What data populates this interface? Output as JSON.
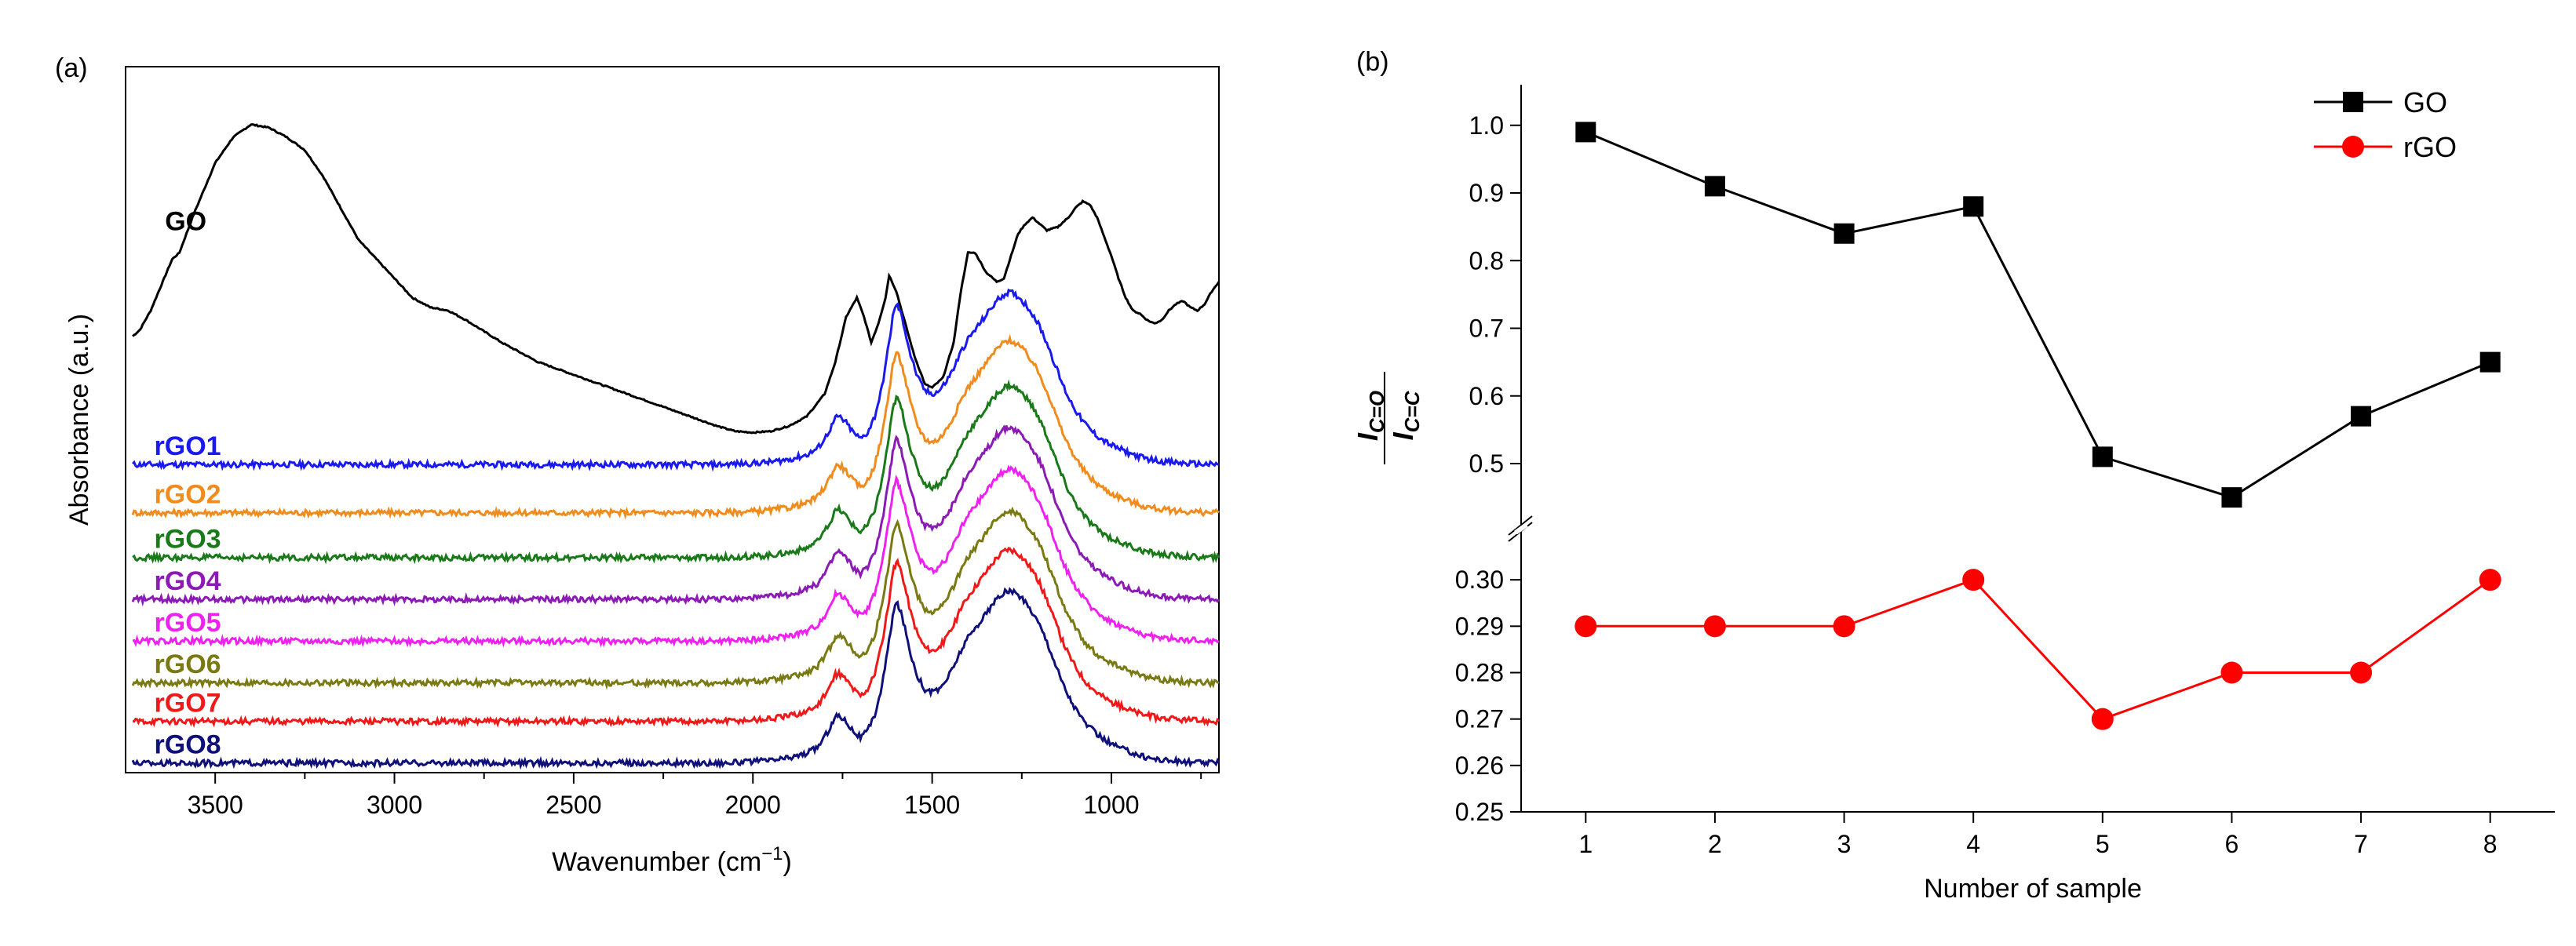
{
  "chart_data": [
    {
      "panel_label": "(a)",
      "type": "line",
      "xlabel": "Wavenumber (cm",
      "xlabel_sup": "−1",
      "xlabel_close": ")",
      "ylabel": "Absorbance (a.u.)",
      "xlim": [
        3750,
        700
      ],
      "x_ticks": [
        3500,
        3000,
        2500,
        2000,
        1500,
        1000
      ],
      "x_tick_labels": [
        "3500",
        "3000",
        "2500",
        "2000",
        "1500",
        "1000"
      ],
      "ylim": [
        -0.2,
        10.8
      ],
      "go_curve": {
        "name": "GO",
        "color": "#000000",
        "label_x": 3640,
        "label_y": 8.25,
        "x": [
          3730,
          3710,
          3680,
          3650,
          3620,
          3600,
          3560,
          3500,
          3450,
          3400,
          3350,
          3300,
          3250,
          3200,
          3150,
          3100,
          3050,
          3000,
          2950,
          2900,
          2850,
          2800,
          2700,
          2600,
          2500,
          2400,
          2300,
          2200,
          2100,
          2050,
          2000,
          1950,
          1900,
          1850,
          1800,
          1770,
          1740,
          1710,
          1690,
          1670,
          1650,
          1630,
          1620,
          1600,
          1580,
          1550,
          1520,
          1500,
          1470,
          1440,
          1420,
          1400,
          1380,
          1350,
          1320,
          1300,
          1280,
          1260,
          1240,
          1220,
          1200,
          1180,
          1150,
          1120,
          1100,
          1080,
          1060,
          1050,
          1040,
          1020,
          1000,
          980,
          960,
          940,
          920,
          900,
          880,
          860,
          840,
          820,
          800,
          780,
          760,
          740,
          720,
          700
        ],
        "y": [
          6.6,
          6.7,
          7.0,
          7.4,
          7.8,
          7.9,
          8.5,
          9.3,
          9.7,
          9.9,
          9.85,
          9.7,
          9.5,
          9.1,
          8.6,
          8.1,
          7.8,
          7.5,
          7.2,
          7.05,
          7.0,
          6.85,
          6.5,
          6.2,
          6.0,
          5.8,
          5.6,
          5.4,
          5.2,
          5.12,
          5.1,
          5.12,
          5.2,
          5.35,
          5.7,
          6.2,
          6.9,
          7.2,
          6.9,
          6.5,
          6.8,
          7.2,
          7.55,
          7.3,
          6.9,
          6.3,
          5.85,
          5.8,
          5.95,
          6.5,
          7.3,
          7.9,
          7.9,
          7.6,
          7.45,
          7.5,
          7.85,
          8.2,
          8.35,
          8.45,
          8.35,
          8.25,
          8.3,
          8.45,
          8.6,
          8.7,
          8.65,
          8.55,
          8.45,
          8.15,
          7.85,
          7.5,
          7.2,
          7.0,
          6.95,
          6.85,
          6.8,
          6.85,
          7.0,
          7.1,
          7.15,
          7.05,
          7.0,
          7.1,
          7.3,
          7.45
        ]
      },
      "rgo_shape": {
        "x": [
          3730,
          3500,
          3000,
          2500,
          2300,
          2100,
          2000,
          1950,
          1900,
          1850,
          1820,
          1800,
          1780,
          1770,
          1760,
          1740,
          1720,
          1700,
          1680,
          1660,
          1640,
          1620,
          1610,
          1600,
          1590,
          1580,
          1560,
          1540,
          1520,
          1500,
          1480,
          1460,
          1440,
          1420,
          1400,
          1380,
          1360,
          1340,
          1320,
          1300,
          1290,
          1280,
          1260,
          1240,
          1220,
          1200,
          1180,
          1160,
          1140,
          1120,
          1100,
          1080,
          1060,
          1040,
          1020,
          1000,
          980,
          960,
          940,
          920,
          900,
          880,
          860,
          840,
          800,
          760,
          720,
          700
        ],
        "y": [
          0,
          0,
          0,
          0,
          0,
          0,
          0.02,
          0.04,
          0.08,
          0.15,
          0.25,
          0.4,
          0.6,
          0.72,
          0.75,
          0.65,
          0.5,
          0.4,
          0.5,
          0.75,
          1.2,
          1.9,
          2.3,
          2.5,
          2.4,
          2.2,
          1.7,
          1.35,
          1.15,
          1.1,
          1.15,
          1.3,
          1.5,
          1.75,
          1.95,
          2.1,
          2.25,
          2.4,
          2.55,
          2.65,
          2.68,
          2.68,
          2.62,
          2.5,
          2.35,
          2.15,
          1.9,
          1.6,
          1.3,
          1.05,
          0.85,
          0.68,
          0.55,
          0.45,
          0.37,
          0.3,
          0.25,
          0.2,
          0.16,
          0.12,
          0.09,
          0.07,
          0.05,
          0.04,
          0.02,
          0.01,
          0.0,
          0.0
        ]
      },
      "rgo_series": [
        {
          "name": "rGO1",
          "color": "#1a1aee",
          "offset": 4.6
        },
        {
          "name": "rGO2",
          "color": "#f08c1e",
          "offset": 3.85
        },
        {
          "name": "rGO3",
          "color": "#1a7a1a",
          "offset": 3.15
        },
        {
          "name": "rGO4",
          "color": "#8c1ab4",
          "offset": 2.5
        },
        {
          "name": "rGO5",
          "color": "#ee22ee",
          "offset": 1.85
        },
        {
          "name": "rGO6",
          "color": "#7a7a14",
          "offset": 1.2
        },
        {
          "name": "rGO7",
          "color": "#ee1a1a",
          "offset": 0.6
        },
        {
          "name": "rGO8",
          "color": "#10107a",
          "offset": -0.05
        }
      ]
    },
    {
      "panel_label": "(b)",
      "type": "line",
      "xlabel": "Number of sample",
      "ylabel_top": "I",
      "ylabel_top_sub": "C=O",
      "ylabel_bottom": "I",
      "ylabel_bottom_sub": "C=C",
      "x": [
        1,
        2,
        3,
        4,
        5,
        6,
        7,
        8
      ],
      "x_tick_labels": [
        "1",
        "2",
        "3",
        "4",
        "5",
        "6",
        "7",
        "8"
      ],
      "xlim": [
        0.5,
        8.5
      ],
      "upper_ylim": [
        0.42,
        1.06
      ],
      "upper_ticks": [
        "0.5",
        "0.6",
        "0.7",
        "0.8",
        "0.9",
        "1.0"
      ],
      "lower_ylim": [
        0.25,
        0.31
      ],
      "lower_ticks": [
        "0.25",
        "0.26",
        "0.27",
        "0.28",
        "0.29",
        "0.30"
      ],
      "series": [
        {
          "name": "GO",
          "color": "#000000",
          "marker": "square",
          "values": [
            0.99,
            0.91,
            0.84,
            0.88,
            0.51,
            0.45,
            0.57,
            0.65
          ]
        },
        {
          "name": "rGO",
          "color": "#ff0000",
          "marker": "circle",
          "values": [
            0.29,
            0.29,
            0.29,
            0.3,
            0.27,
            0.28,
            0.28,
            0.3
          ]
        }
      ],
      "legend_position": "top-right"
    }
  ]
}
